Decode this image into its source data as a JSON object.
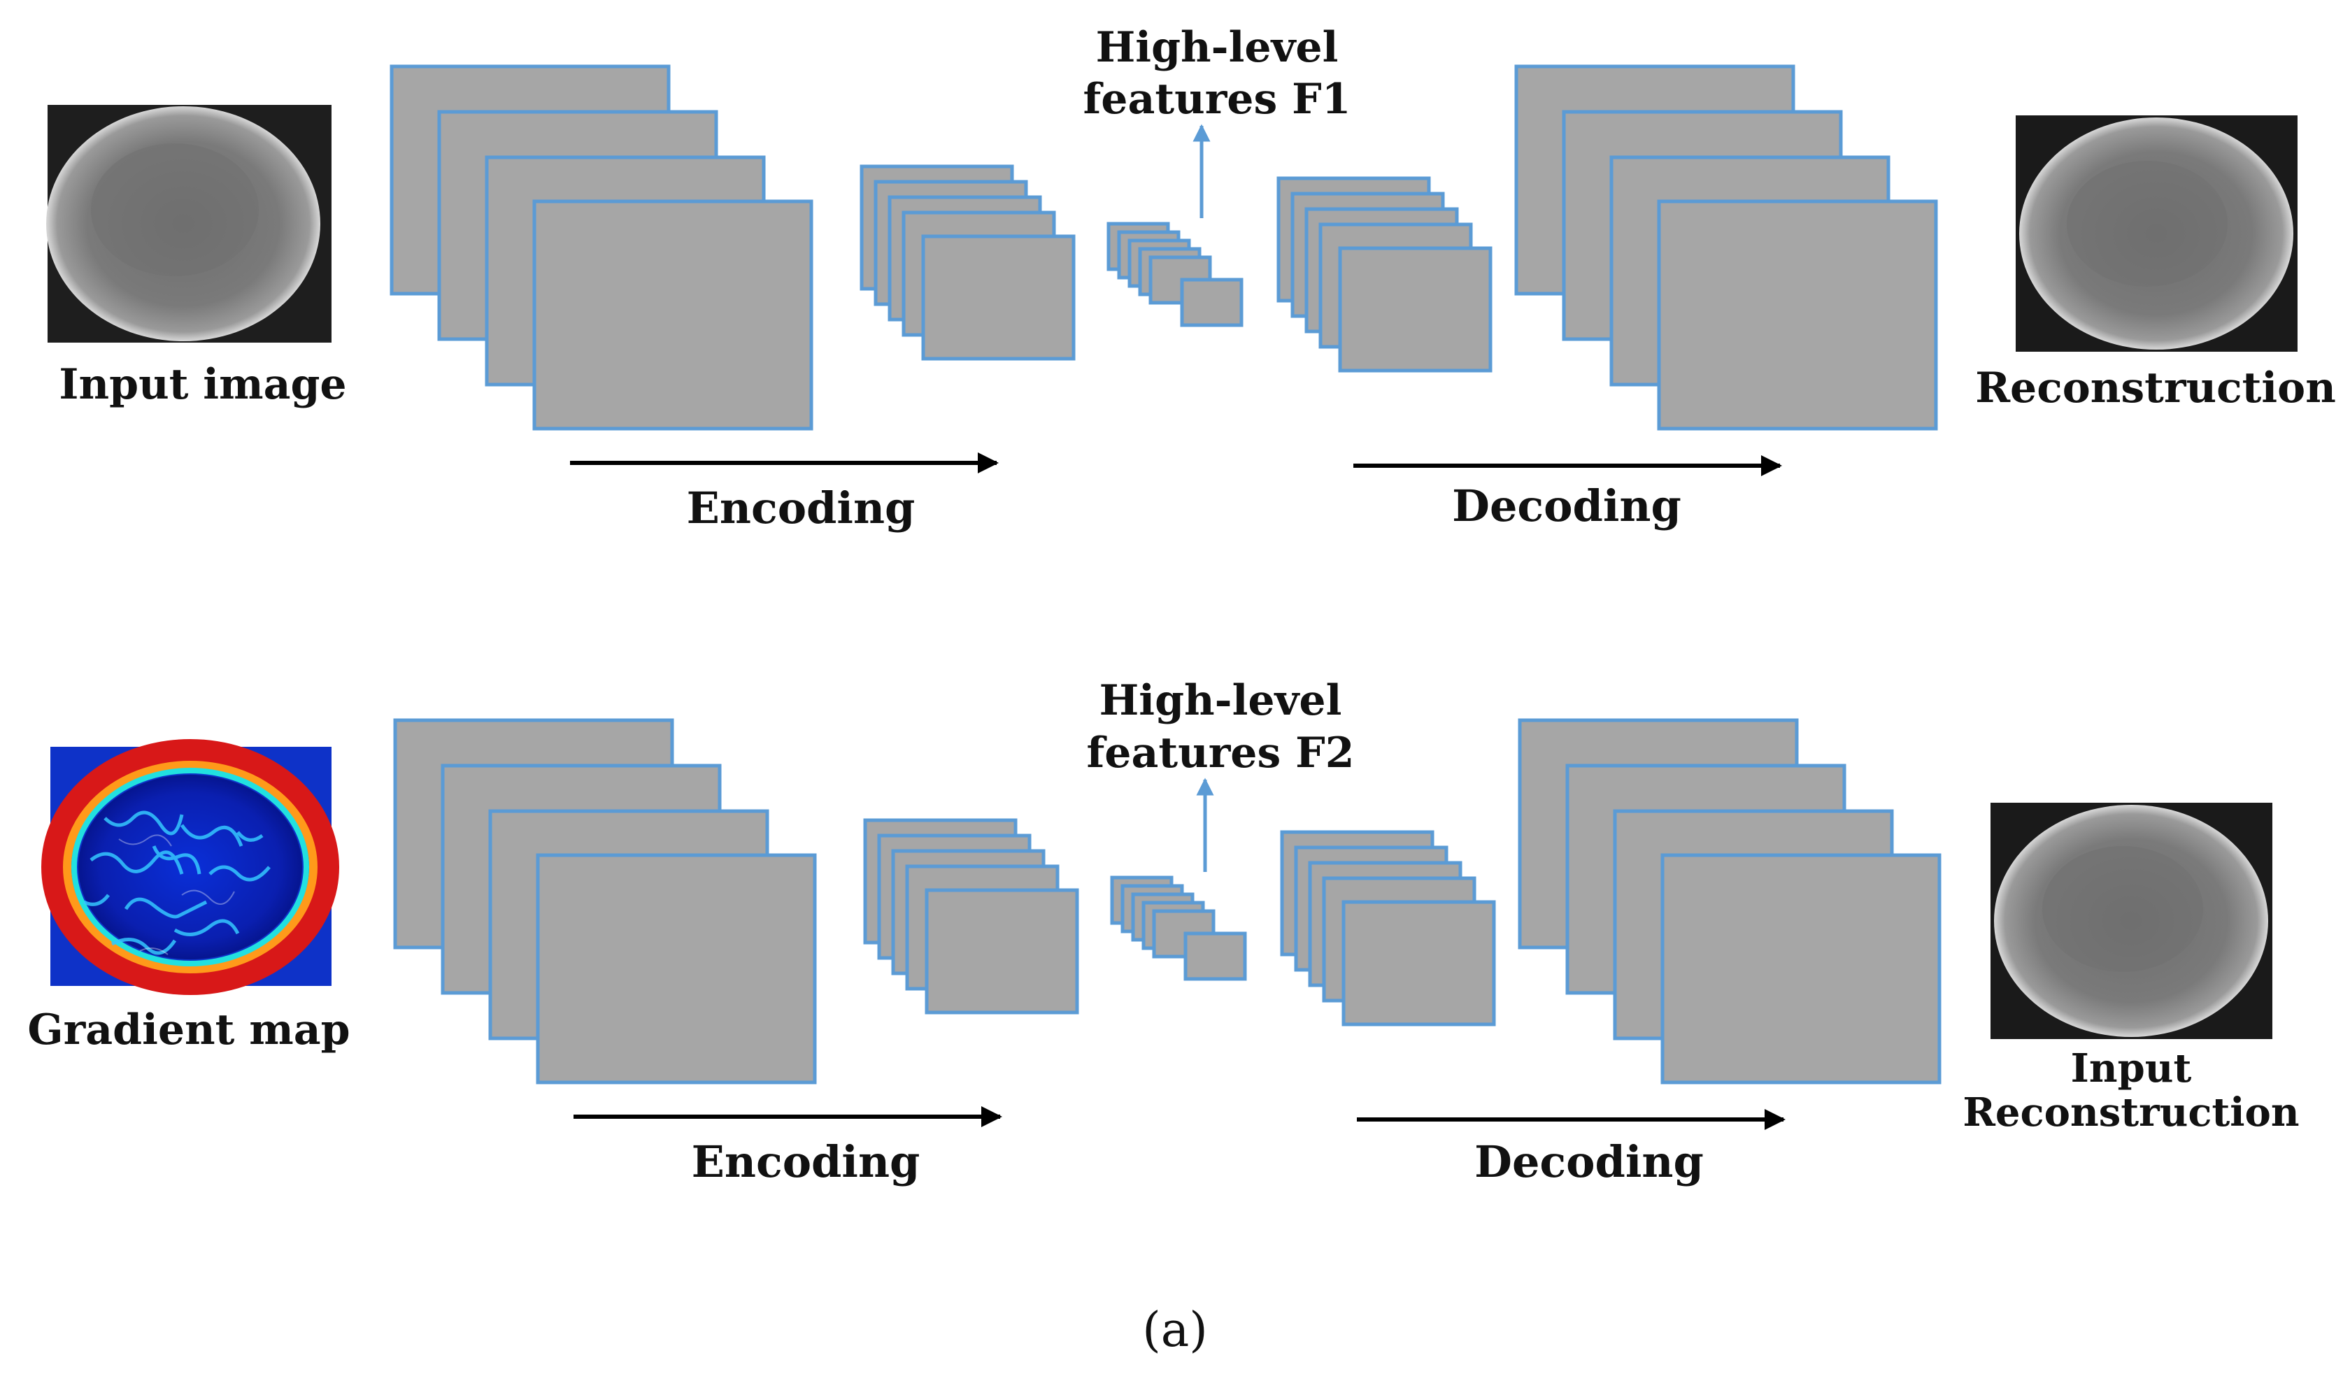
{
  "colors": {
    "feature_map_fill": "#a6a6a6",
    "feature_map_border": "#5b9bd5",
    "feature_arrow": "#5b9bd5",
    "flow_arrow": "#000000"
  },
  "rows": [
    {
      "input_label": "Input image",
      "input_kind": "grayscale-image",
      "encoding_label": "Encoding",
      "decoding_label": "Decoding",
      "features_line1": "High-level",
      "features_line2": "features F1",
      "output_label_line1": "Reconstruction",
      "output_label_line2": ""
    },
    {
      "input_label": "Gradient map",
      "input_kind": "gradient-heatmap",
      "encoding_label": "Encoding",
      "decoding_label": "Decoding",
      "features_line1": "High-level",
      "features_line2": "features F2",
      "output_label_line1": "Input",
      "output_label_line2": "Reconstruction"
    }
  ],
  "caption": "(a)"
}
